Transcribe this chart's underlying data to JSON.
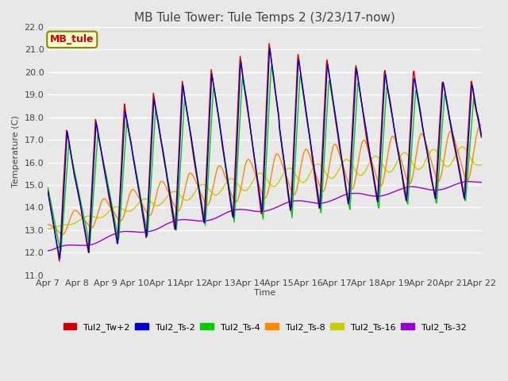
{
  "title": "MB Tule Tower: Tule Temps 2 (3/23/17-now)",
  "xlabel": "Time",
  "ylabel": "Temperature (C)",
  "ylim": [
    11.0,
    22.0
  ],
  "yticks": [
    11.0,
    12.0,
    13.0,
    14.0,
    15.0,
    16.0,
    17.0,
    18.0,
    19.0,
    20.0,
    21.0,
    22.0
  ],
  "xtick_labels": [
    "Apr 7",
    "Apr 8",
    "Apr 9",
    "Apr 10",
    "Apr 11",
    "Apr 12",
    "Apr 13",
    "Apr 14",
    "Apr 15",
    "Apr 16",
    "Apr 17",
    "Apr 18",
    "Apr 19",
    "Apr 20",
    "Apr 21",
    "Apr 22"
  ],
  "legend_label": "MB_tule",
  "series_labels": [
    "Tul2_Tw+2",
    "Tul2_Ts-2",
    "Tul2_Ts-4",
    "Tul2_Ts-8",
    "Tul2_Ts-16",
    "Tul2_Ts-32"
  ],
  "series_colors": [
    "#cc0000",
    "#0000cc",
    "#00cc00",
    "#ff8800",
    "#cccc00",
    "#9900cc"
  ],
  "background_color": "#e8e8e8",
  "grid_color": "#ffffff",
  "title_fontsize": 11,
  "axis_fontsize": 8,
  "legend_fontsize": 8
}
